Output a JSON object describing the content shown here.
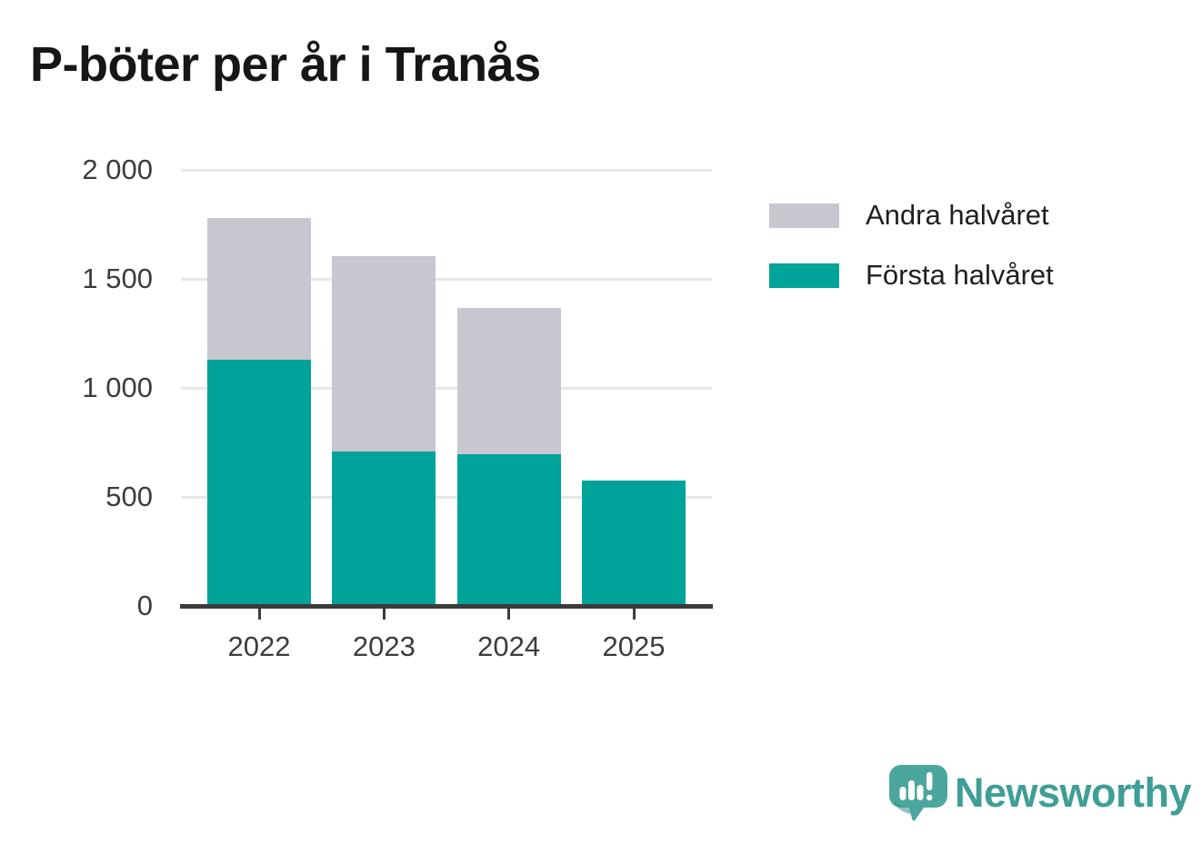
{
  "title": "P-böter per år i Tranås",
  "legend": {
    "items": [
      {
        "label": "Andra halvåret",
        "color": "#c8c6ce"
      },
      {
        "label": "Första halvåret",
        "color": "#00a39a"
      }
    ]
  },
  "chart_data": {
    "type": "bar",
    "stacked": true,
    "title": "P-böter per år i Tranås",
    "categories": [
      "2022",
      "2023",
      "2024",
      "2025"
    ],
    "series": [
      {
        "name": "Första halvåret",
        "color": "#00a39a",
        "values": [
          1130,
          710,
          695,
          575
        ]
      },
      {
        "name": "Andra halvåret",
        "color": "#c8c6ce",
        "values": [
          650,
          895,
          670,
          0
        ]
      }
    ],
    "totals": [
      1780,
      1605,
      1365,
      575
    ],
    "xlabel": "",
    "ylabel": "",
    "ylim": [
      0,
      2000
    ],
    "yticks": [
      0,
      500,
      1000,
      1500,
      2000
    ],
    "ytick_labels": [
      "0",
      "500",
      "1 000",
      "1 500",
      "2 000"
    ],
    "grid": true,
    "gridline_color": "#e7e7e7",
    "axis_color": "#3b3b3b",
    "legend_position": "right"
  },
  "branding": {
    "wordmark": "Newsworthy",
    "logo_icon": "newsworthy-speech-bubble-chart-icon",
    "wordmark_color": "#3f9e96",
    "icon_color": "#4ba69e"
  }
}
